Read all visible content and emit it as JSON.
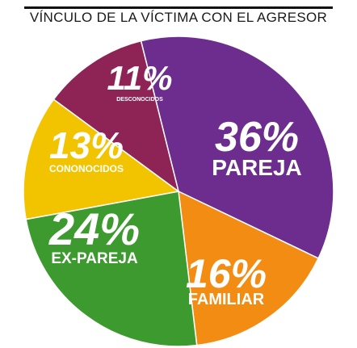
{
  "chart_data": {
    "type": "pie",
    "title": "VÍNCULO DE LA VÍCTIMA CON EL AGRESOR",
    "slices": [
      {
        "label": "PAREJA",
        "value": 36,
        "pct_label": "36%",
        "color": "#6d2d8e"
      },
      {
        "label": "FAMILIAR",
        "value": 16,
        "pct_label": "16%",
        "color": "#f28c12"
      },
      {
        "label": "EX-PAREJA",
        "value": 24,
        "pct_label": "24%",
        "color": "#3d9a2e"
      },
      {
        "label": "CONONOCIDOS",
        "value": 13,
        "pct_label": "13%",
        "color": "#f2c400"
      },
      {
        "label": "DESCONOCIDOS",
        "value": 11,
        "pct_label": "11%",
        "color": "#8e2456"
      }
    ]
  }
}
